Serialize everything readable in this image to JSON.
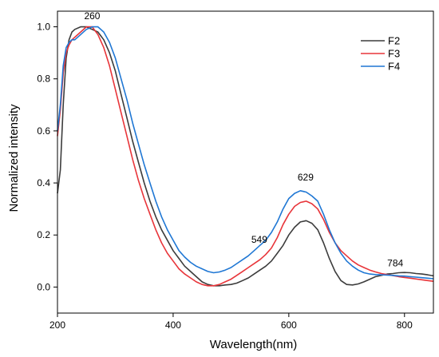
{
  "chart_data": {
    "type": "line",
    "xlabel": "Wavelength(nm)",
    "ylabel": "Normalized intensity",
    "xlim": [
      200,
      850
    ],
    "ylim": [
      -0.1,
      1.06
    ],
    "xticks": [
      200,
      400,
      600,
      800
    ],
    "yticks": [
      0.0,
      0.2,
      0.4,
      0.6,
      0.8,
      1.0
    ],
    "ytick_labels": [
      "0.0",
      "0.2",
      "0.4",
      "0.6",
      "0.8",
      "1.0"
    ],
    "grid": false,
    "legend_position": "top-right",
    "annotations": [
      {
        "text": "260",
        "x": 260,
        "y": 1.03
      },
      {
        "text": "549",
        "x": 549,
        "y": 0.17
      },
      {
        "text": "629",
        "x": 629,
        "y": 0.41
      },
      {
        "text": "784",
        "x": 784,
        "y": 0.08
      }
    ],
    "series": [
      {
        "name": "F2",
        "color": "#3c3c3c",
        "x": [
          200,
          205,
          210,
          215,
          220,
          225,
          230,
          240,
          250,
          260,
          270,
          280,
          290,
          300,
          310,
          320,
          330,
          340,
          350,
          360,
          370,
          380,
          390,
          400,
          410,
          420,
          430,
          440,
          450,
          460,
          470,
          480,
          490,
          500,
          510,
          520,
          530,
          540,
          550,
          560,
          570,
          580,
          590,
          600,
          610,
          620,
          630,
          640,
          650,
          660,
          670,
          680,
          690,
          700,
          710,
          720,
          730,
          740,
          750,
          760,
          770,
          780,
          790,
          800,
          810,
          820,
          830,
          840,
          850
        ],
        "y": [
          0.36,
          0.45,
          0.7,
          0.88,
          0.95,
          0.98,
          0.99,
          1.0,
          1.0,
          0.99,
          0.98,
          0.95,
          0.9,
          0.83,
          0.74,
          0.65,
          0.56,
          0.48,
          0.4,
          0.33,
          0.27,
          0.22,
          0.18,
          0.14,
          0.11,
          0.08,
          0.06,
          0.04,
          0.02,
          0.01,
          0.005,
          0.005,
          0.008,
          0.01,
          0.015,
          0.025,
          0.035,
          0.05,
          0.065,
          0.08,
          0.1,
          0.13,
          0.16,
          0.2,
          0.23,
          0.25,
          0.255,
          0.245,
          0.22,
          0.17,
          0.11,
          0.06,
          0.025,
          0.01,
          0.008,
          0.012,
          0.02,
          0.03,
          0.04,
          0.045,
          0.05,
          0.052,
          0.055,
          0.056,
          0.055,
          0.052,
          0.05,
          0.047,
          0.043
        ]
      },
      {
        "name": "F3",
        "color": "#e8353a",
        "x": [
          200,
          205,
          210,
          215,
          220,
          225,
          230,
          240,
          250,
          260,
          270,
          280,
          290,
          300,
          310,
          320,
          330,
          340,
          350,
          360,
          370,
          380,
          390,
          400,
          410,
          420,
          430,
          440,
          450,
          460,
          470,
          480,
          490,
          500,
          510,
          520,
          530,
          540,
          550,
          560,
          570,
          580,
          590,
          600,
          610,
          620,
          630,
          640,
          650,
          660,
          670,
          680,
          690,
          700,
          710,
          720,
          730,
          740,
          750,
          760,
          770,
          780,
          790,
          800,
          810,
          820,
          830,
          840,
          850
        ],
        "y": [
          0.58,
          0.68,
          0.82,
          0.9,
          0.93,
          0.95,
          0.96,
          0.98,
          1.0,
          1.0,
          0.97,
          0.92,
          0.85,
          0.76,
          0.67,
          0.58,
          0.49,
          0.41,
          0.34,
          0.28,
          0.22,
          0.17,
          0.13,
          0.1,
          0.07,
          0.05,
          0.035,
          0.02,
          0.01,
          0.005,
          0.005,
          0.01,
          0.02,
          0.03,
          0.045,
          0.06,
          0.075,
          0.09,
          0.105,
          0.125,
          0.15,
          0.19,
          0.24,
          0.28,
          0.31,
          0.325,
          0.33,
          0.32,
          0.3,
          0.26,
          0.21,
          0.17,
          0.14,
          0.12,
          0.1,
          0.085,
          0.075,
          0.065,
          0.058,
          0.052,
          0.048,
          0.044,
          0.04,
          0.037,
          0.034,
          0.031,
          0.028,
          0.025,
          0.022
        ]
      },
      {
        "name": "F4",
        "color": "#1f77d4",
        "x": [
          200,
          205,
          210,
          215,
          220,
          225,
          230,
          240,
          250,
          260,
          270,
          280,
          290,
          300,
          310,
          320,
          330,
          340,
          350,
          360,
          370,
          380,
          390,
          400,
          410,
          420,
          430,
          440,
          450,
          460,
          470,
          480,
          490,
          500,
          510,
          520,
          530,
          540,
          550,
          560,
          570,
          580,
          590,
          600,
          610,
          620,
          630,
          640,
          650,
          660,
          670,
          680,
          690,
          700,
          710,
          720,
          730,
          740,
          750,
          760,
          770,
          780,
          790,
          800,
          810,
          820,
          830,
          840,
          850
        ],
        "y": [
          0.6,
          0.7,
          0.85,
          0.92,
          0.94,
          0.95,
          0.95,
          0.97,
          0.99,
          1.0,
          1.0,
          0.98,
          0.94,
          0.88,
          0.8,
          0.72,
          0.63,
          0.55,
          0.47,
          0.4,
          0.33,
          0.27,
          0.22,
          0.18,
          0.14,
          0.115,
          0.095,
          0.08,
          0.07,
          0.06,
          0.055,
          0.058,
          0.065,
          0.075,
          0.09,
          0.105,
          0.12,
          0.14,
          0.16,
          0.18,
          0.21,
          0.25,
          0.3,
          0.34,
          0.36,
          0.37,
          0.365,
          0.35,
          0.33,
          0.28,
          0.22,
          0.17,
          0.13,
          0.1,
          0.08,
          0.065,
          0.055,
          0.05,
          0.048,
          0.047,
          0.046,
          0.045,
          0.043,
          0.042,
          0.04,
          0.038,
          0.036,
          0.034,
          0.032
        ]
      }
    ]
  }
}
